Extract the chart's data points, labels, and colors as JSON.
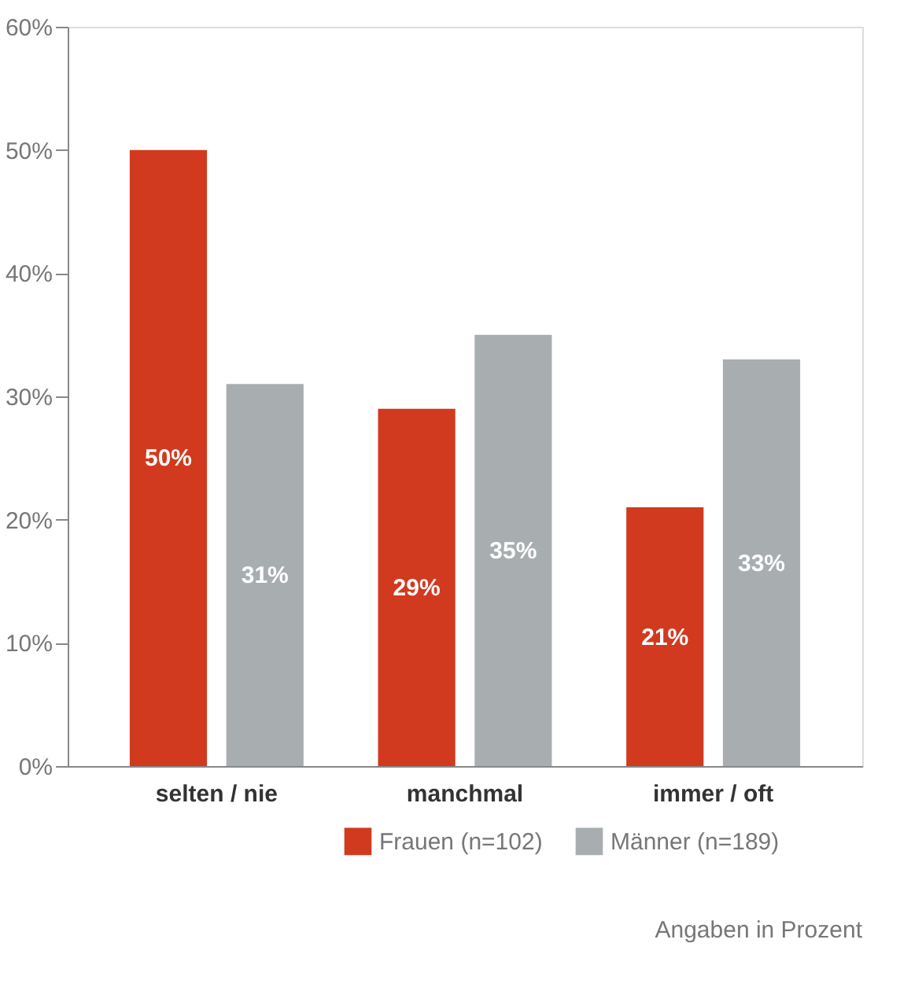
{
  "chart_data": {
    "type": "bar",
    "categories": [
      "selten / nie",
      "manchmal",
      "immer / oft"
    ],
    "series": [
      {
        "name": "Frauen (n=102)",
        "color": "#d13a1f",
        "values": [
          50,
          29,
          21
        ],
        "value_labels": [
          "50%",
          "29%",
          "21%"
        ]
      },
      {
        "name": "Männer (n=189)",
        "color": "#a8aeb0",
        "values": [
          31,
          35,
          33
        ],
        "value_labels": [
          "31%",
          "35%",
          "33%"
        ]
      }
    ],
    "ylim": [
      0,
      60
    ],
    "yticks": [
      {
        "value": 0,
        "label": "0%"
      },
      {
        "value": 10,
        "label": "10%"
      },
      {
        "value": 20,
        "label": "20%"
      },
      {
        "value": 30,
        "label": "30%"
      },
      {
        "value": 40,
        "label": "40%"
      },
      {
        "value": 50,
        "label": "50%"
      },
      {
        "value": 60,
        "label": "60%"
      }
    ],
    "legend": "bottom right",
    "grid": false,
    "annotations": [
      "Angaben in Prozent"
    ]
  }
}
